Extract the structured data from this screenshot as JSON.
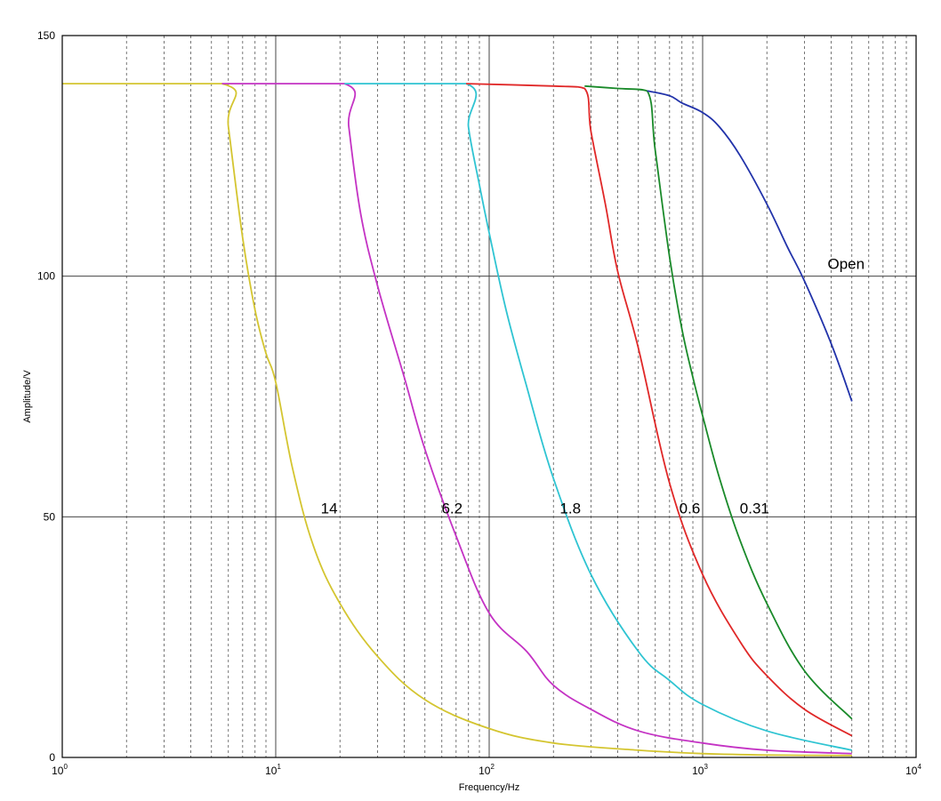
{
  "chart_data": {
    "type": "line",
    "title": "",
    "xlabel": "Frequency/Hz",
    "ylabel": "Amplitude/V",
    "xscale": "log",
    "xlim": [
      1,
      10000
    ],
    "ylim": [
      0,
      150
    ],
    "grid": true,
    "x_ticks": [
      {
        "base": "10",
        "exp": "0",
        "value": 1
      },
      {
        "base": "10",
        "exp": "1",
        "value": 10
      },
      {
        "base": "10",
        "exp": "2",
        "value": 100
      },
      {
        "base": "10",
        "exp": "3",
        "value": 1000
      },
      {
        "base": "10",
        "exp": "4",
        "value": 10000
      }
    ],
    "y_ticks": [
      {
        "label": "0",
        "value": 0
      },
      {
        "label": "50",
        "value": 50
      },
      {
        "label": "100",
        "value": 100
      },
      {
        "label": "150",
        "value": 150
      }
    ],
    "series": [
      {
        "label": "14",
        "color": "#d4c530",
        "label_x": 17.8,
        "label_y": 50.7,
        "x": [
          1,
          5.6,
          6,
          7,
          8,
          9,
          10,
          12,
          15,
          20,
          30,
          50,
          100,
          200,
          500,
          1000,
          2000,
          5000
        ],
        "y": [
          140,
          140,
          131,
          108,
          93,
          84,
          78,
          60,
          44,
          32,
          21,
          12,
          6,
          3,
          1.5,
          0.8,
          0.5,
          0.4
        ]
      },
      {
        "label": "6.2",
        "color": "#c433c4",
        "label_x": 67,
        "label_y": 50.7,
        "x": [
          5.6,
          21,
          22,
          25,
          30,
          40,
          50,
          70,
          100,
          150,
          200,
          300,
          500,
          1000,
          2000,
          5000
        ],
        "y": [
          140,
          140,
          131,
          113,
          98,
          79,
          64,
          46,
          30,
          22,
          15,
          10,
          5.5,
          3,
          1.5,
          0.8
        ]
      },
      {
        "label": "1.8",
        "color": "#2fc4d2",
        "label_x": 240,
        "label_y": 50.7,
        "x": [
          21,
          78,
          80,
          90,
          100,
          120,
          150,
          200,
          300,
          500,
          700,
          1000,
          2000,
          5000
        ],
        "y": [
          140,
          140,
          131,
          119,
          109,
          93,
          77,
          58,
          38,
          22,
          16,
          11,
          5.5,
          1.5
        ]
      },
      {
        "label": "0.6",
        "color": "#e02828",
        "label_x": 870,
        "label_y": 50.7,
        "x": [
          78,
          200,
          280,
          300,
          350,
          400,
          500,
          700,
          1000,
          1500,
          2000,
          3000,
          5000
        ],
        "y": [
          140,
          139.5,
          139,
          130,
          115,
          101,
          85,
          57,
          38,
          24,
          17,
          10,
          4.5
        ]
      },
      {
        "label": "0.31",
        "color": "#1a8a2a",
        "label_x": 1750,
        "label_y": 50.7,
        "x": [
          280,
          400,
          550,
          600,
          700,
          800,
          900,
          1000,
          1200,
          1500,
          2000,
          3000,
          5000
        ],
        "y": [
          139.5,
          139,
          138.5,
          126,
          104,
          89,
          79,
          71,
          58,
          45,
          32,
          18,
          8
        ]
      },
      {
        "label": "Open",
        "color": "#2233aa",
        "label_x": 4700,
        "label_y": 101.5,
        "x": [
          550,
          700,
          800,
          1000,
          1200,
          1500,
          2000,
          2500,
          3000,
          4000,
          5000
        ],
        "y": [
          138.5,
          137.5,
          136,
          134,
          131,
          125,
          115,
          106,
          99,
          86,
          74
        ]
      }
    ]
  }
}
